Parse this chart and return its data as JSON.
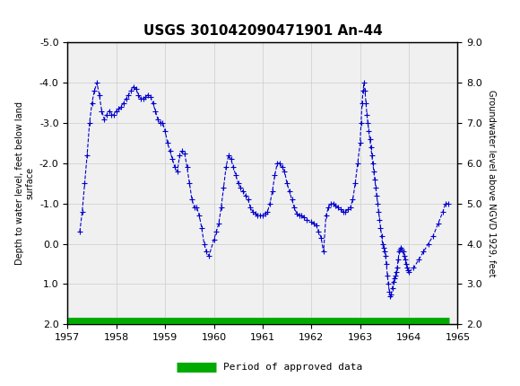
{
  "title": "USGS 301042090471901 An-44",
  "xlabel": "",
  "ylabel_left": "Depth to water level, feet below land\nsurface",
  "ylabel_right": "Groundwater level above NGVD 1929, feet",
  "xlim": [
    1957.0,
    1965.0
  ],
  "ylim_left": [
    2.0,
    -5.0
  ],
  "ylim_right": [
    2.0,
    9.0
  ],
  "yticks_left": [
    2.0,
    1.0,
    0.0,
    -1.0,
    -2.0,
    -3.0,
    -4.0,
    -5.0
  ],
  "yticks_right": [
    2.0,
    3.0,
    4.0,
    5.0,
    6.0,
    7.0,
    8.0,
    9.0
  ],
  "xticks": [
    1957,
    1958,
    1959,
    1960,
    1961,
    1962,
    1963,
    1964,
    1965
  ],
  "header_color": "#1a6b3a",
  "line_color": "#0000cc",
  "legend_color": "#00aa00",
  "data_points": [
    [
      1957.25,
      -0.3
    ],
    [
      1957.3,
      -0.8
    ],
    [
      1957.35,
      -1.5
    ],
    [
      1957.4,
      -2.2
    ],
    [
      1957.45,
      -3.0
    ],
    [
      1957.5,
      -3.5
    ],
    [
      1957.55,
      -3.8
    ],
    [
      1957.6,
      -4.0
    ],
    [
      1957.65,
      -3.7
    ],
    [
      1957.7,
      -3.3
    ],
    [
      1957.75,
      -3.1
    ],
    [
      1957.8,
      -3.2
    ],
    [
      1957.85,
      -3.3
    ],
    [
      1957.9,
      -3.2
    ],
    [
      1957.95,
      -3.2
    ],
    [
      1958.0,
      -3.3
    ],
    [
      1958.05,
      -3.35
    ],
    [
      1958.1,
      -3.4
    ],
    [
      1958.15,
      -3.5
    ],
    [
      1958.2,
      -3.6
    ],
    [
      1958.25,
      -3.7
    ],
    [
      1958.3,
      -3.8
    ],
    [
      1958.35,
      -3.9
    ],
    [
      1958.4,
      -3.85
    ],
    [
      1958.45,
      -3.7
    ],
    [
      1958.5,
      -3.6
    ],
    [
      1958.55,
      -3.6
    ],
    [
      1958.6,
      -3.65
    ],
    [
      1958.65,
      -3.7
    ],
    [
      1958.7,
      -3.65
    ],
    [
      1958.75,
      -3.5
    ],
    [
      1958.8,
      -3.3
    ],
    [
      1958.85,
      -3.1
    ],
    [
      1958.9,
      -3.0
    ],
    [
      1958.95,
      -3.0
    ],
    [
      1959.0,
      -2.8
    ],
    [
      1959.05,
      -2.5
    ],
    [
      1959.1,
      -2.3
    ],
    [
      1959.15,
      -2.1
    ],
    [
      1959.2,
      -1.9
    ],
    [
      1959.25,
      -1.8
    ],
    [
      1959.3,
      -2.2
    ],
    [
      1959.35,
      -2.3
    ],
    [
      1959.4,
      -2.25
    ],
    [
      1959.45,
      -1.9
    ],
    [
      1959.5,
      -1.5
    ],
    [
      1959.55,
      -1.1
    ],
    [
      1959.6,
      -0.9
    ],
    [
      1959.65,
      -0.9
    ],
    [
      1959.7,
      -0.7
    ],
    [
      1959.75,
      -0.4
    ],
    [
      1959.8,
      0.0
    ],
    [
      1959.85,
      0.2
    ],
    [
      1959.9,
      0.3
    ],
    [
      1960.0,
      -0.1
    ],
    [
      1960.05,
      -0.3
    ],
    [
      1960.1,
      -0.5
    ],
    [
      1960.15,
      -0.9
    ],
    [
      1960.2,
      -1.4
    ],
    [
      1960.25,
      -1.9
    ],
    [
      1960.3,
      -2.2
    ],
    [
      1960.35,
      -2.1
    ],
    [
      1960.4,
      -1.9
    ],
    [
      1960.45,
      -1.7
    ],
    [
      1960.5,
      -1.5
    ],
    [
      1960.55,
      -1.4
    ],
    [
      1960.6,
      -1.3
    ],
    [
      1960.65,
      -1.2
    ],
    [
      1960.7,
      -1.1
    ],
    [
      1960.75,
      -0.9
    ],
    [
      1960.8,
      -0.8
    ],
    [
      1960.85,
      -0.75
    ],
    [
      1960.9,
      -0.7
    ],
    [
      1960.95,
      -0.7
    ],
    [
      1961.0,
      -0.7
    ],
    [
      1961.05,
      -0.75
    ],
    [
      1961.1,
      -0.8
    ],
    [
      1961.15,
      -1.0
    ],
    [
      1961.2,
      -1.3
    ],
    [
      1961.25,
      -1.7
    ],
    [
      1961.3,
      -2.0
    ],
    [
      1961.35,
      -2.0
    ],
    [
      1961.4,
      -1.9
    ],
    [
      1961.45,
      -1.8
    ],
    [
      1961.5,
      -1.5
    ],
    [
      1961.55,
      -1.3
    ],
    [
      1961.6,
      -1.1
    ],
    [
      1961.65,
      -0.9
    ],
    [
      1961.7,
      -0.75
    ],
    [
      1961.75,
      -0.7
    ],
    [
      1961.8,
      -0.7
    ],
    [
      1961.85,
      -0.65
    ],
    [
      1961.9,
      -0.6
    ],
    [
      1962.0,
      -0.55
    ],
    [
      1962.05,
      -0.5
    ],
    [
      1962.1,
      -0.45
    ],
    [
      1962.15,
      -0.3
    ],
    [
      1962.2,
      -0.15
    ],
    [
      1962.25,
      0.2
    ],
    [
      1962.3,
      -0.7
    ],
    [
      1962.35,
      -0.9
    ],
    [
      1962.4,
      -1.0
    ],
    [
      1962.45,
      -1.0
    ],
    [
      1962.5,
      -0.95
    ],
    [
      1962.55,
      -0.9
    ],
    [
      1962.6,
      -0.85
    ],
    [
      1962.65,
      -0.8
    ],
    [
      1962.7,
      -0.8
    ],
    [
      1962.75,
      -0.85
    ],
    [
      1962.8,
      -0.9
    ],
    [
      1962.85,
      -1.1
    ],
    [
      1962.9,
      -1.5
    ],
    [
      1962.95,
      -2.0
    ],
    [
      1963.0,
      -2.5
    ],
    [
      1963.02,
      -3.0
    ],
    [
      1963.04,
      -3.5
    ],
    [
      1963.06,
      -3.8
    ],
    [
      1963.08,
      -4.0
    ],
    [
      1963.1,
      -3.8
    ],
    [
      1963.12,
      -3.5
    ],
    [
      1963.14,
      -3.2
    ],
    [
      1963.16,
      -3.0
    ],
    [
      1963.18,
      -2.8
    ],
    [
      1963.2,
      -2.6
    ],
    [
      1963.22,
      -2.4
    ],
    [
      1963.24,
      -2.2
    ],
    [
      1963.26,
      -2.0
    ],
    [
      1963.28,
      -1.8
    ],
    [
      1963.3,
      -1.6
    ],
    [
      1963.32,
      -1.4
    ],
    [
      1963.34,
      -1.2
    ],
    [
      1963.36,
      -1.0
    ],
    [
      1963.38,
      -0.8
    ],
    [
      1963.4,
      -0.6
    ],
    [
      1963.42,
      -0.4
    ],
    [
      1963.44,
      -0.2
    ],
    [
      1963.46,
      0.0
    ],
    [
      1963.48,
      0.1
    ],
    [
      1963.5,
      0.2
    ],
    [
      1963.52,
      0.3
    ],
    [
      1963.54,
      0.5
    ],
    [
      1963.56,
      0.8
    ],
    [
      1963.58,
      1.0
    ],
    [
      1963.6,
      1.2
    ],
    [
      1963.62,
      1.3
    ],
    [
      1963.64,
      1.25
    ],
    [
      1963.66,
      1.1
    ],
    [
      1963.68,
      0.95
    ],
    [
      1963.7,
      0.85
    ],
    [
      1963.72,
      0.8
    ],
    [
      1963.74,
      0.7
    ],
    [
      1963.76,
      0.6
    ],
    [
      1963.78,
      0.4
    ],
    [
      1963.8,
      0.2
    ],
    [
      1963.82,
      0.15
    ],
    [
      1963.84,
      0.1
    ],
    [
      1963.86,
      0.15
    ],
    [
      1963.88,
      0.2
    ],
    [
      1963.9,
      0.3
    ],
    [
      1963.92,
      0.4
    ],
    [
      1963.94,
      0.5
    ],
    [
      1963.96,
      0.6
    ],
    [
      1963.98,
      0.65
    ],
    [
      1964.0,
      0.7
    ],
    [
      1964.1,
      0.6
    ],
    [
      1964.2,
      0.4
    ],
    [
      1964.3,
      0.2
    ],
    [
      1964.4,
      0.0
    ],
    [
      1964.5,
      -0.2
    ],
    [
      1964.6,
      -0.5
    ],
    [
      1964.7,
      -0.8
    ],
    [
      1964.75,
      -1.0
    ],
    [
      1964.8,
      -1.0
    ]
  ],
  "approved_bar_y": 2.0,
  "approved_bar_xstart": 1957.0,
  "approved_bar_xend": 1964.83,
  "background_color": "#ffffff",
  "plot_bg_color": "#f0f0f0",
  "grid_color": "#cccccc"
}
